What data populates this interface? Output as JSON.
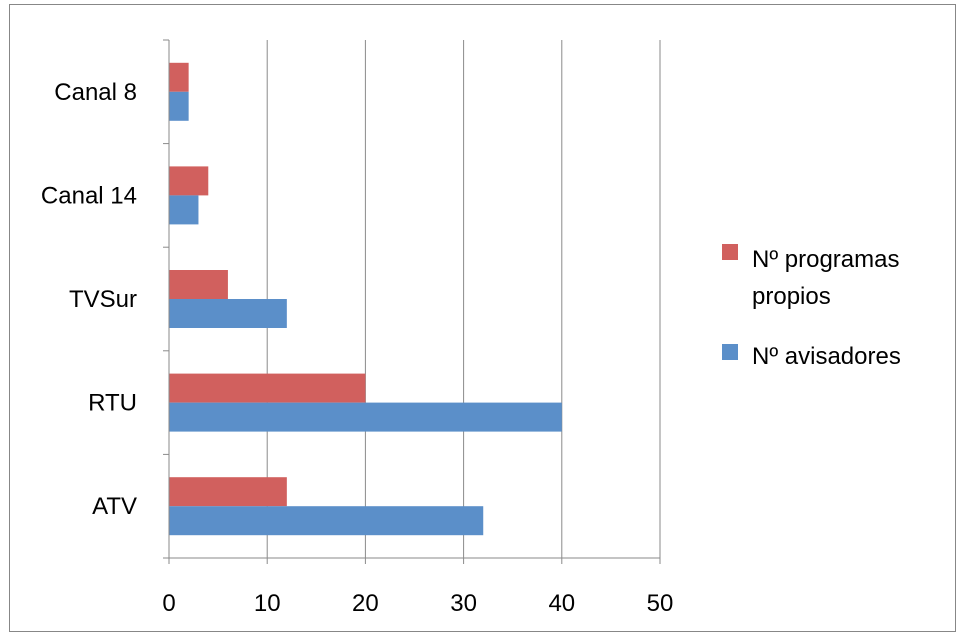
{
  "chart_data": {
    "type": "bar",
    "orientation": "horizontal",
    "categories": [
      "ATV",
      "RTU",
      "TVSur",
      "Canal 14",
      "Canal 8"
    ],
    "series": [
      {
        "name": "Nº avisadores",
        "color": "#5B8FC9",
        "values": [
          32,
          40,
          12,
          3,
          2
        ]
      },
      {
        "name": "Nº programas propios",
        "color": "#D1605E",
        "values": [
          12,
          20,
          6,
          4,
          2
        ]
      }
    ],
    "legend_order": [
      1,
      0
    ],
    "legend_lines": [
      [
        "Nº programas",
        "propios"
      ],
      [
        "Nº avisadores"
      ]
    ],
    "xlim": [
      0,
      50
    ],
    "xticks": [
      0,
      10,
      20,
      30,
      40,
      50
    ],
    "grid": true,
    "legend_position": "right",
    "title": "",
    "xlabel": "",
    "ylabel": ""
  }
}
